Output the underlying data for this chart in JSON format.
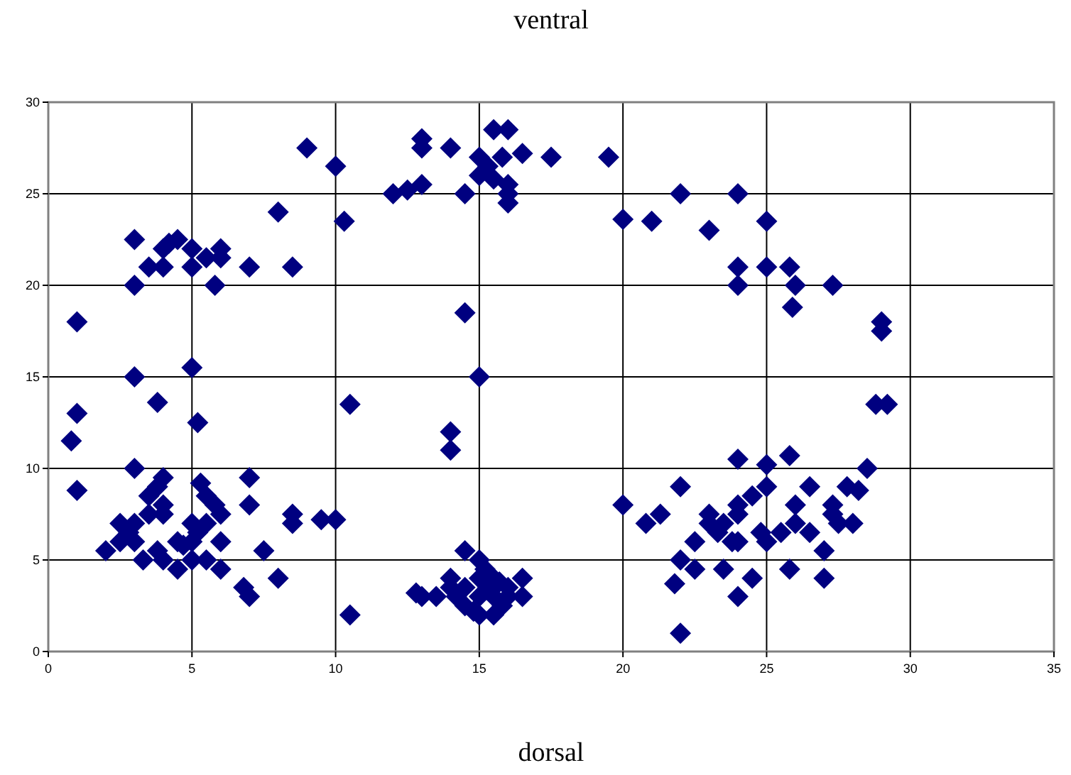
{
  "chart_data": {
    "type": "scatter",
    "title": "ventral",
    "annotations": [
      "dorsal"
    ],
    "xlim": [
      0,
      35
    ],
    "ylim": [
      0,
      30
    ],
    "xticks": [
      0,
      5,
      10,
      15,
      20,
      25,
      30,
      35
    ],
    "yticks": [
      0,
      5,
      10,
      15,
      20,
      25,
      30
    ],
    "grid": true,
    "marker": "diamond",
    "series": [
      {
        "color": "#000080",
        "x": [
          1,
          3,
          3,
          3.5,
          4,
          4.2,
          4.5,
          4,
          5,
          5,
          5.5,
          6,
          6,
          5.8,
          7,
          8,
          8.5,
          9,
          10,
          10.3,
          10.5,
          5,
          5.2,
          3,
          3.8,
          1,
          0.8,
          1,
          3,
          2,
          2.5,
          2.5,
          3,
          3,
          3.3,
          3.5,
          3.5,
          3.8,
          4,
          4,
          4,
          4,
          3.8,
          4.5,
          4.5,
          5,
          5,
          5,
          5.3,
          5.5,
          5.5,
          5.5,
          5.8,
          6,
          6,
          6,
          7,
          7,
          6.8,
          7,
          7.5,
          8,
          8.5,
          8.5,
          9.5,
          10,
          10.5,
          2.8,
          4.7,
          5.2,
          12,
          12.5,
          13,
          13,
          13,
          14,
          14.5,
          15,
          15,
          15.3,
          15.5,
          15.5,
          16,
          15.8,
          16,
          16,
          16,
          16.5,
          17.5,
          19.5,
          14.5,
          15,
          14,
          14,
          12.8,
          13,
          13.5,
          14,
          14,
          14.2,
          14.5,
          14.5,
          14.5,
          15,
          15,
          15,
          15,
          15.2,
          15.3,
          15.5,
          15.5,
          15.5,
          15.8,
          16,
          16,
          16.5,
          16.5,
          14.8,
          15.7,
          20,
          20,
          21,
          22,
          23,
          24,
          24,
          24,
          25,
          25,
          25.8,
          26,
          25.9,
          27.3,
          29,
          29,
          28.8,
          29.2,
          20.8,
          21.3,
          22,
          22,
          21.8,
          22,
          22.5,
          22.5,
          23,
          23,
          23.3,
          23.5,
          23.5,
          23.8,
          24,
          24,
          24,
          24,
          24,
          24.5,
          24.5,
          24.8,
          25,
          25,
          25,
          25.5,
          25.8,
          26,
          25.8,
          26,
          26.5,
          26.5,
          27,
          27,
          27.3,
          27.3,
          27.5,
          27.8,
          28,
          28.2,
          28.5
        ],
        "values": [
          18,
          22.5,
          20,
          21,
          22,
          22.3,
          22.5,
          21,
          22,
          21,
          21.5,
          22,
          21.5,
          20,
          21,
          24,
          21,
          27.5,
          26.5,
          23.5,
          13.5,
          15.5,
          12.5,
          15,
          13.6,
          13,
          11.5,
          8.8,
          10,
          5.5,
          6,
          7,
          7,
          6,
          5,
          7.5,
          8.5,
          9,
          9.5,
          8,
          7.5,
          5,
          5.5,
          4.5,
          6,
          6,
          7,
          5,
          9.2,
          8.5,
          7,
          5,
          8,
          7.5,
          6,
          4.5,
          9.5,
          8,
          3.5,
          3,
          5.5,
          4,
          7.5,
          7,
          7.2,
          7.2,
          2,
          6.5,
          5.8,
          6.5,
          25,
          25.2,
          25.5,
          28,
          27.5,
          27.5,
          25,
          26,
          27,
          26.5,
          25.8,
          28.5,
          28.5,
          27,
          25.5,
          24.5,
          25,
          27.2,
          27,
          27,
          18.5,
          15,
          12,
          11,
          3.2,
          3,
          3,
          3.5,
          4,
          3,
          5.5,
          3.5,
          2.5,
          5,
          4,
          3,
          2,
          4.5,
          3.5,
          3,
          2,
          4,
          2.5,
          3.5,
          3,
          4,
          3,
          2.2,
          3.8,
          8,
          23.6,
          23.5,
          25,
          23,
          25,
          21,
          20,
          23.5,
          21,
          21,
          20,
          18.8,
          20,
          18,
          17.5,
          13.5,
          13.5,
          7,
          7.5,
          9,
          5,
          3.7,
          1,
          4.5,
          6,
          7.5,
          7,
          6.5,
          7,
          4.5,
          6,
          10.5,
          8,
          7.5,
          6,
          3,
          4,
          8.5,
          6.5,
          10.2,
          9,
          6,
          6.5,
          10.7,
          8,
          4.5,
          7,
          9,
          6.5,
          4,
          5.5,
          8,
          7.5,
          7,
          9,
          7,
          8.8,
          10
        ]
      }
    ]
  }
}
